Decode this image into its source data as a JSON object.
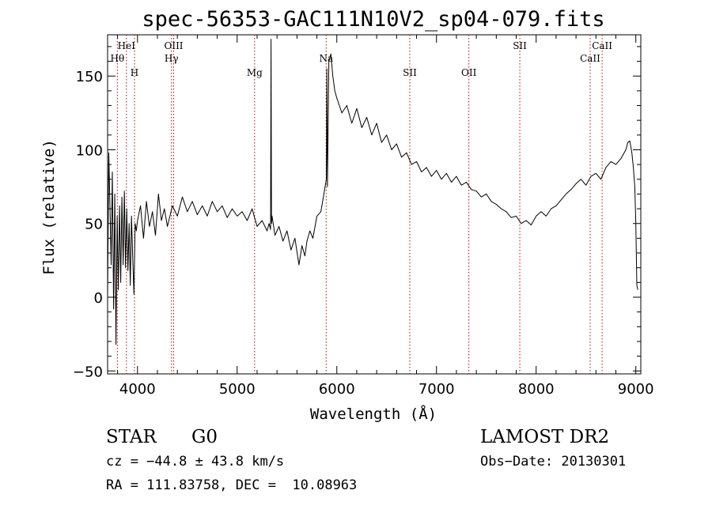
{
  "chart_data": {
    "type": "line",
    "title": "spec-56353-GAC111N10V2_sp04-079.fits",
    "xlabel": "Wavelength (Å)",
    "ylabel": "Flux (relative)",
    "xlim": [
      3700,
      9050
    ],
    "ylim": [
      -52,
      178
    ],
    "xticks": [
      4000,
      5000,
      6000,
      7000,
      8000,
      9000
    ],
    "yticks": [
      -50,
      0,
      50,
      100,
      150
    ],
    "grid": false,
    "legend": "none",
    "series": [
      {
        "values": [
          [
            3700,
            0
          ],
          [
            3712,
            98
          ],
          [
            3724,
            62
          ],
          [
            3736,
            22
          ],
          [
            3748,
            85
          ],
          [
            3760,
            -8
          ],
          [
            3772,
            70
          ],
          [
            3784,
            -32
          ],
          [
            3796,
            55
          ],
          [
            3808,
            5
          ],
          [
            3820,
            62
          ],
          [
            3832,
            10
          ],
          [
            3844,
            68
          ],
          [
            3856,
            22
          ],
          [
            3868,
            72
          ],
          [
            3880,
            20
          ],
          [
            3892,
            60
          ],
          [
            3904,
            18
          ],
          [
            3916,
            50
          ],
          [
            3928,
            8
          ],
          [
            3940,
            55
          ],
          [
            3952,
            28
          ],
          [
            3964,
            2
          ],
          [
            3976,
            50
          ],
          [
            3988,
            45
          ],
          [
            4000,
            52
          ],
          [
            4030,
            62
          ],
          [
            4060,
            40
          ],
          [
            4090,
            65
          ],
          [
            4120,
            48
          ],
          [
            4150,
            58
          ],
          [
            4180,
            42
          ],
          [
            4210,
            70
          ],
          [
            4240,
            52
          ],
          [
            4270,
            60
          ],
          [
            4300,
            48
          ],
          [
            4350,
            62
          ],
          [
            4400,
            55
          ],
          [
            4450,
            68
          ],
          [
            4500,
            58
          ],
          [
            4550,
            65
          ],
          [
            4600,
            56
          ],
          [
            4650,
            62
          ],
          [
            4700,
            55
          ],
          [
            4750,
            65
          ],
          [
            4800,
            58
          ],
          [
            4850,
            62
          ],
          [
            4900,
            54
          ],
          [
            4950,
            60
          ],
          [
            5000,
            55
          ],
          [
            5050,
            58
          ],
          [
            5100,
            52
          ],
          [
            5150,
            60
          ],
          [
            5200,
            48
          ],
          [
            5250,
            52
          ],
          [
            5300,
            45
          ],
          [
            5320,
            50
          ],
          [
            5335,
            46
          ],
          [
            5340,
            175
          ],
          [
            5345,
            50
          ],
          [
            5350,
            55
          ],
          [
            5380,
            42
          ],
          [
            5420,
            48
          ],
          [
            5460,
            38
          ],
          [
            5500,
            45
          ],
          [
            5540,
            32
          ],
          [
            5580,
            40
          ],
          [
            5620,
            22
          ],
          [
            5650,
            35
          ],
          [
            5680,
            28
          ],
          [
            5700,
            38
          ],
          [
            5730,
            45
          ],
          [
            5760,
            40
          ],
          [
            5800,
            55
          ],
          [
            5840,
            58
          ],
          [
            5870,
            70
          ],
          [
            5895,
            80
          ],
          [
            5900,
            155
          ],
          [
            5906,
            75
          ],
          [
            5920,
            160
          ],
          [
            5940,
            165
          ],
          [
            5960,
            150
          ],
          [
            5980,
            140
          ],
          [
            6000,
            135
          ],
          [
            6050,
            125
          ],
          [
            6100,
            130
          ],
          [
            6150,
            118
          ],
          [
            6200,
            128
          ],
          [
            6250,
            115
          ],
          [
            6300,
            122
          ],
          [
            6350,
            110
          ],
          [
            6400,
            118
          ],
          [
            6450,
            105
          ],
          [
            6500,
            110
          ],
          [
            6550,
            100
          ],
          [
            6600,
            104
          ],
          [
            6650,
            95
          ],
          [
            6700,
            98
          ],
          [
            6750,
            90
          ],
          [
            6800,
            92
          ],
          [
            6850,
            85
          ],
          [
            6900,
            88
          ],
          [
            6950,
            82
          ],
          [
            7000,
            86
          ],
          [
            7050,
            80
          ],
          [
            7100,
            84
          ],
          [
            7150,
            78
          ],
          [
            7200,
            82
          ],
          [
            7250,
            76
          ],
          [
            7300,
            78
          ],
          [
            7350,
            73
          ],
          [
            7400,
            72
          ],
          [
            7450,
            68
          ],
          [
            7500,
            70
          ],
          [
            7550,
            65
          ],
          [
            7600,
            63
          ],
          [
            7650,
            60
          ],
          [
            7700,
            58
          ],
          [
            7750,
            54
          ],
          [
            7800,
            55
          ],
          [
            7850,
            50
          ],
          [
            7900,
            52
          ],
          [
            7950,
            49
          ],
          [
            8000,
            55
          ],
          [
            8050,
            58
          ],
          [
            8100,
            55
          ],
          [
            8150,
            60
          ],
          [
            8200,
            62
          ],
          [
            8250,
            66
          ],
          [
            8300,
            70
          ],
          [
            8350,
            73
          ],
          [
            8400,
            77
          ],
          [
            8450,
            80
          ],
          [
            8500,
            76
          ],
          [
            8550,
            82
          ],
          [
            8600,
            84
          ],
          [
            8650,
            80
          ],
          [
            8700,
            88
          ],
          [
            8750,
            92
          ],
          [
            8800,
            90
          ],
          [
            8850,
            94
          ],
          [
            8900,
            100
          ],
          [
            8920,
            105
          ],
          [
            8940,
            106
          ],
          [
            8960,
            98
          ],
          [
            8975,
            88
          ],
          [
            8990,
            75
          ],
          [
            9000,
            50
          ],
          [
            9010,
            8
          ],
          [
            9020,
            5
          ]
        ]
      }
    ],
    "line_markers": [
      {
        "label": "Hθ",
        "x": 3798,
        "row": 2
      },
      {
        "label": "HeI",
        "x": 3889,
        "row": 1
      },
      {
        "label": "H",
        "x": 3970,
        "row": 3
      },
      {
        "label": "OIII",
        "x": 4363,
        "row": 1
      },
      {
        "label": "Hγ",
        "x": 4341,
        "row": 2
      },
      {
        "label": "Mg",
        "x": 5175,
        "row": 3
      },
      {
        "label": "Na",
        "x": 5893,
        "row": 2
      },
      {
        "label": "SII",
        "x": 6732,
        "row": 3
      },
      {
        "label": "OII",
        "x": 7325,
        "row": 3
      },
      {
        "label": "SII",
        "x": 7836,
        "row": 1
      },
      {
        "label": "CaII",
        "x": 8542,
        "row": 2
      },
      {
        "label": "CaII",
        "x": 8662,
        "row": 1
      }
    ],
    "colors": {
      "spectrum": "#000000",
      "marker_line": "#cc0000"
    }
  },
  "info": {
    "object_class": "STAR",
    "subclass": "G0",
    "redshift": "cz = −44.8 ± 43.8 km/s",
    "coords": "RA = 111.83758, DEC =  10.08963",
    "survey": "LAMOST DR2",
    "obs_date": "Obs−Date: 20130301"
  }
}
